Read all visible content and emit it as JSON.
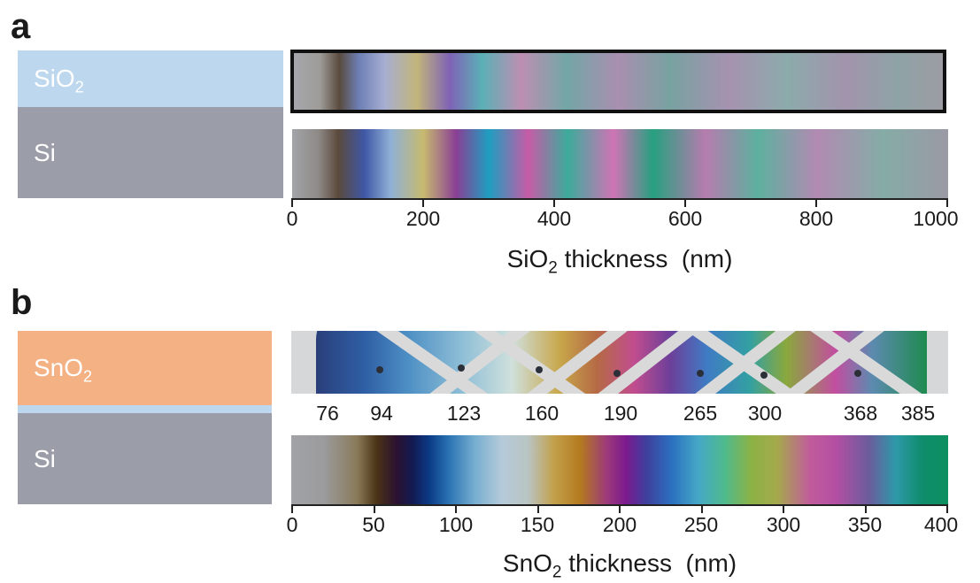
{
  "panel_a": {
    "letter": "a",
    "layers": {
      "top": "SiO",
      "top_sub": "2",
      "bottom": "Si"
    },
    "axis": {
      "ticks": [
        "0",
        "200",
        "400",
        "600",
        "800",
        "1000"
      ],
      "title_prefix": "SiO",
      "title_sub": "2",
      "title_suffix": " thickness  (nm)"
    }
  },
  "panel_b": {
    "letter": "b",
    "layers": {
      "top": "SnO",
      "top_sub": "2",
      "bottom": "Si"
    },
    "markers": [
      "76",
      "94",
      "123",
      "160",
      "190",
      "265",
      "300",
      "368",
      "385"
    ],
    "axis": {
      "ticks": [
        "0",
        "50",
        "100",
        "150",
        "200",
        "250",
        "300",
        "350",
        "400"
      ],
      "title_prefix": "SnO",
      "title_sub": "2",
      "title_suffix": " thickness  (nm)"
    }
  },
  "colors": {
    "sio2_layer": "#bcd7ee",
    "sno2_layer": "#f4b183",
    "si_layer": "#9b9da8"
  }
}
